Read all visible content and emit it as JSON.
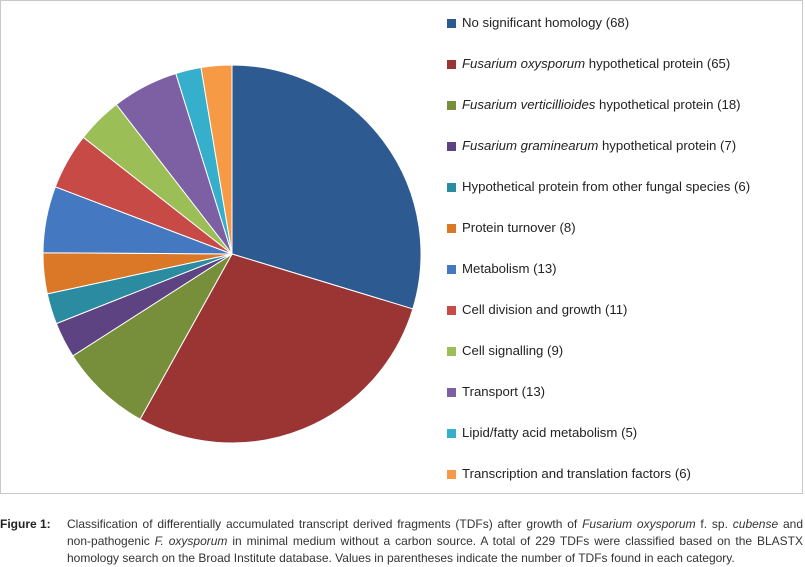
{
  "chart_data": {
    "type": "pie",
    "title": "",
    "legend_position": "right",
    "slices": [
      {
        "label_parts": [
          {
            "text": "No significant homology",
            "italic": false
          }
        ],
        "count": "(68)",
        "value": 68,
        "color": "#2E5A92"
      },
      {
        "label_parts": [
          {
            "text": "Fusarium oxysporum",
            "italic": true
          },
          {
            "text": " hypothetical protein",
            "italic": false
          }
        ],
        "count": "(65)",
        "value": 65,
        "color": "#9B3534"
      },
      {
        "label_parts": [
          {
            "text": "Fusarium verticillioides",
            "italic": true
          },
          {
            "text": " hypothetical protein",
            "italic": false
          }
        ],
        "count": "(18)",
        "value": 18,
        "color": "#778F3A"
      },
      {
        "label_parts": [
          {
            "text": "Fusarium graminearum",
            "italic": true
          },
          {
            "text": " hypothetical protein",
            "italic": false
          }
        ],
        "count": "(7)",
        "value": 7,
        "color": "#5E4383"
      },
      {
        "label_parts": [
          {
            "text": "Hypothetical protein from other fungal species",
            "italic": false
          }
        ],
        "count": "(6)",
        "value": 6,
        "color": "#2A8BA1"
      },
      {
        "label_parts": [
          {
            "text": "Protein turnover",
            "italic": false
          }
        ],
        "count": "(8)",
        "value": 8,
        "color": "#DA7828"
      },
      {
        "label_parts": [
          {
            "text": "Metabolism",
            "italic": false
          }
        ],
        "count": "(13)",
        "value": 13,
        "color": "#4479C1"
      },
      {
        "label_parts": [
          {
            "text": "Cell division and growth",
            "italic": false
          }
        ],
        "count": "(11)",
        "value": 11,
        "color": "#C84A47"
      },
      {
        "label_parts": [
          {
            "text": "Cell signalling",
            "italic": false
          }
        ],
        "count": "(9)",
        "value": 9,
        "color": "#9CBE56"
      },
      {
        "label_parts": [
          {
            "text": "Transport",
            "italic": false
          }
        ],
        "count": "(13)",
        "value": 13,
        "color": "#7D5FA4"
      },
      {
        "label_parts": [
          {
            "text": "Lipid/fatty acid metabolism",
            "italic": false
          }
        ],
        "count": "(5)",
        "value": 5,
        "color": "#35AFCC"
      },
      {
        "label_parts": [
          {
            "text": "Transcription and translation factors",
            "italic": false
          }
        ],
        "count": "(6)",
        "value": 6,
        "color": "#F79A45"
      }
    ]
  },
  "caption": {
    "label": "Figure 1:",
    "parts": [
      {
        "text": "Classification of differentially accumulated transcript derived fragments (TDFs) after growth of ",
        "italic": false
      },
      {
        "text": "Fusarium oxysporum",
        "italic": true
      },
      {
        "text": " f. sp. ",
        "italic": false
      },
      {
        "text": "cubense",
        "italic": true
      },
      {
        "text": " and non-pathogenic ",
        "italic": false
      },
      {
        "text": "F. oxysporum",
        "italic": true
      },
      {
        "text": " in minimal medium without a carbon source. A total of 229 TDFs were classified based on the BLASTX homology search on the Broad Institute database. Values in parentheses indicate the number of TDFs found in each category.",
        "italic": false
      }
    ]
  }
}
